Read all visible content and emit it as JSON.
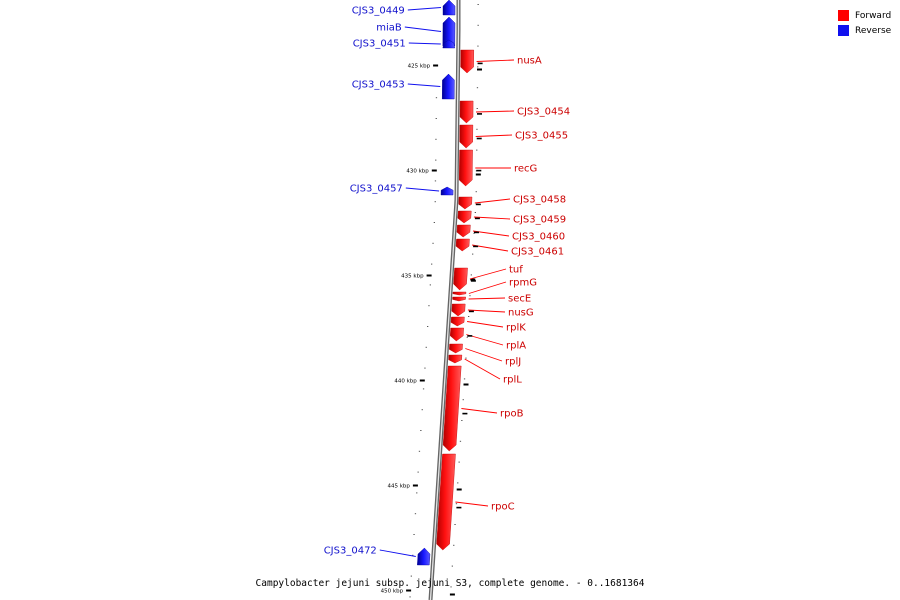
{
  "legend": {
    "forward_label": "Forward",
    "reverse_label": "Reverse"
  },
  "colors": {
    "forward": "#ff0000",
    "reverse": "#1010ee"
  },
  "footer": {
    "caption": "Campylobacter jejuni subsp. jejuni S3, complete genome. - 0..1681364"
  },
  "map_data": {
    "type": "linear-genome-map",
    "unit": "kbp",
    "ticks": [
      {
        "label": "425 kbp"
      },
      {
        "label": "430 kbp"
      },
      {
        "label": "435 kbp"
      },
      {
        "label": "440 kbp"
      },
      {
        "label": "445 kbp"
      },
      {
        "label": "450 kbp"
      }
    ],
    "genes": [
      {
        "name": "CJS3_0449",
        "strand": "reverse"
      },
      {
        "name": "miaB",
        "strand": "reverse"
      },
      {
        "name": "CJS3_0451",
        "strand": "reverse"
      },
      {
        "name": "nusA",
        "strand": "forward"
      },
      {
        "name": "CJS3_0453",
        "strand": "reverse"
      },
      {
        "name": "CJS3_0454",
        "strand": "forward"
      },
      {
        "name": "CJS3_0455",
        "strand": "forward"
      },
      {
        "name": "recG",
        "strand": "forward"
      },
      {
        "name": "CJS3_0457",
        "strand": "reverse"
      },
      {
        "name": "CJS3_0458",
        "strand": "forward"
      },
      {
        "name": "CJS3_0459",
        "strand": "forward"
      },
      {
        "name": "CJS3_0460",
        "strand": "forward"
      },
      {
        "name": "CJS3_0461",
        "strand": "forward"
      },
      {
        "name": "tuf",
        "strand": "forward"
      },
      {
        "name": "rpmG",
        "strand": "forward"
      },
      {
        "name": "secE",
        "strand": "forward"
      },
      {
        "name": "nusG",
        "strand": "forward"
      },
      {
        "name": "rplK",
        "strand": "forward"
      },
      {
        "name": "rplA",
        "strand": "forward"
      },
      {
        "name": "rplJ",
        "strand": "forward"
      },
      {
        "name": "rplL",
        "strand": "forward"
      },
      {
        "name": "rpoB",
        "strand": "forward"
      },
      {
        "name": "rpoC",
        "strand": "forward"
      },
      {
        "name": "CJS3_0472",
        "strand": "reverse"
      }
    ]
  }
}
